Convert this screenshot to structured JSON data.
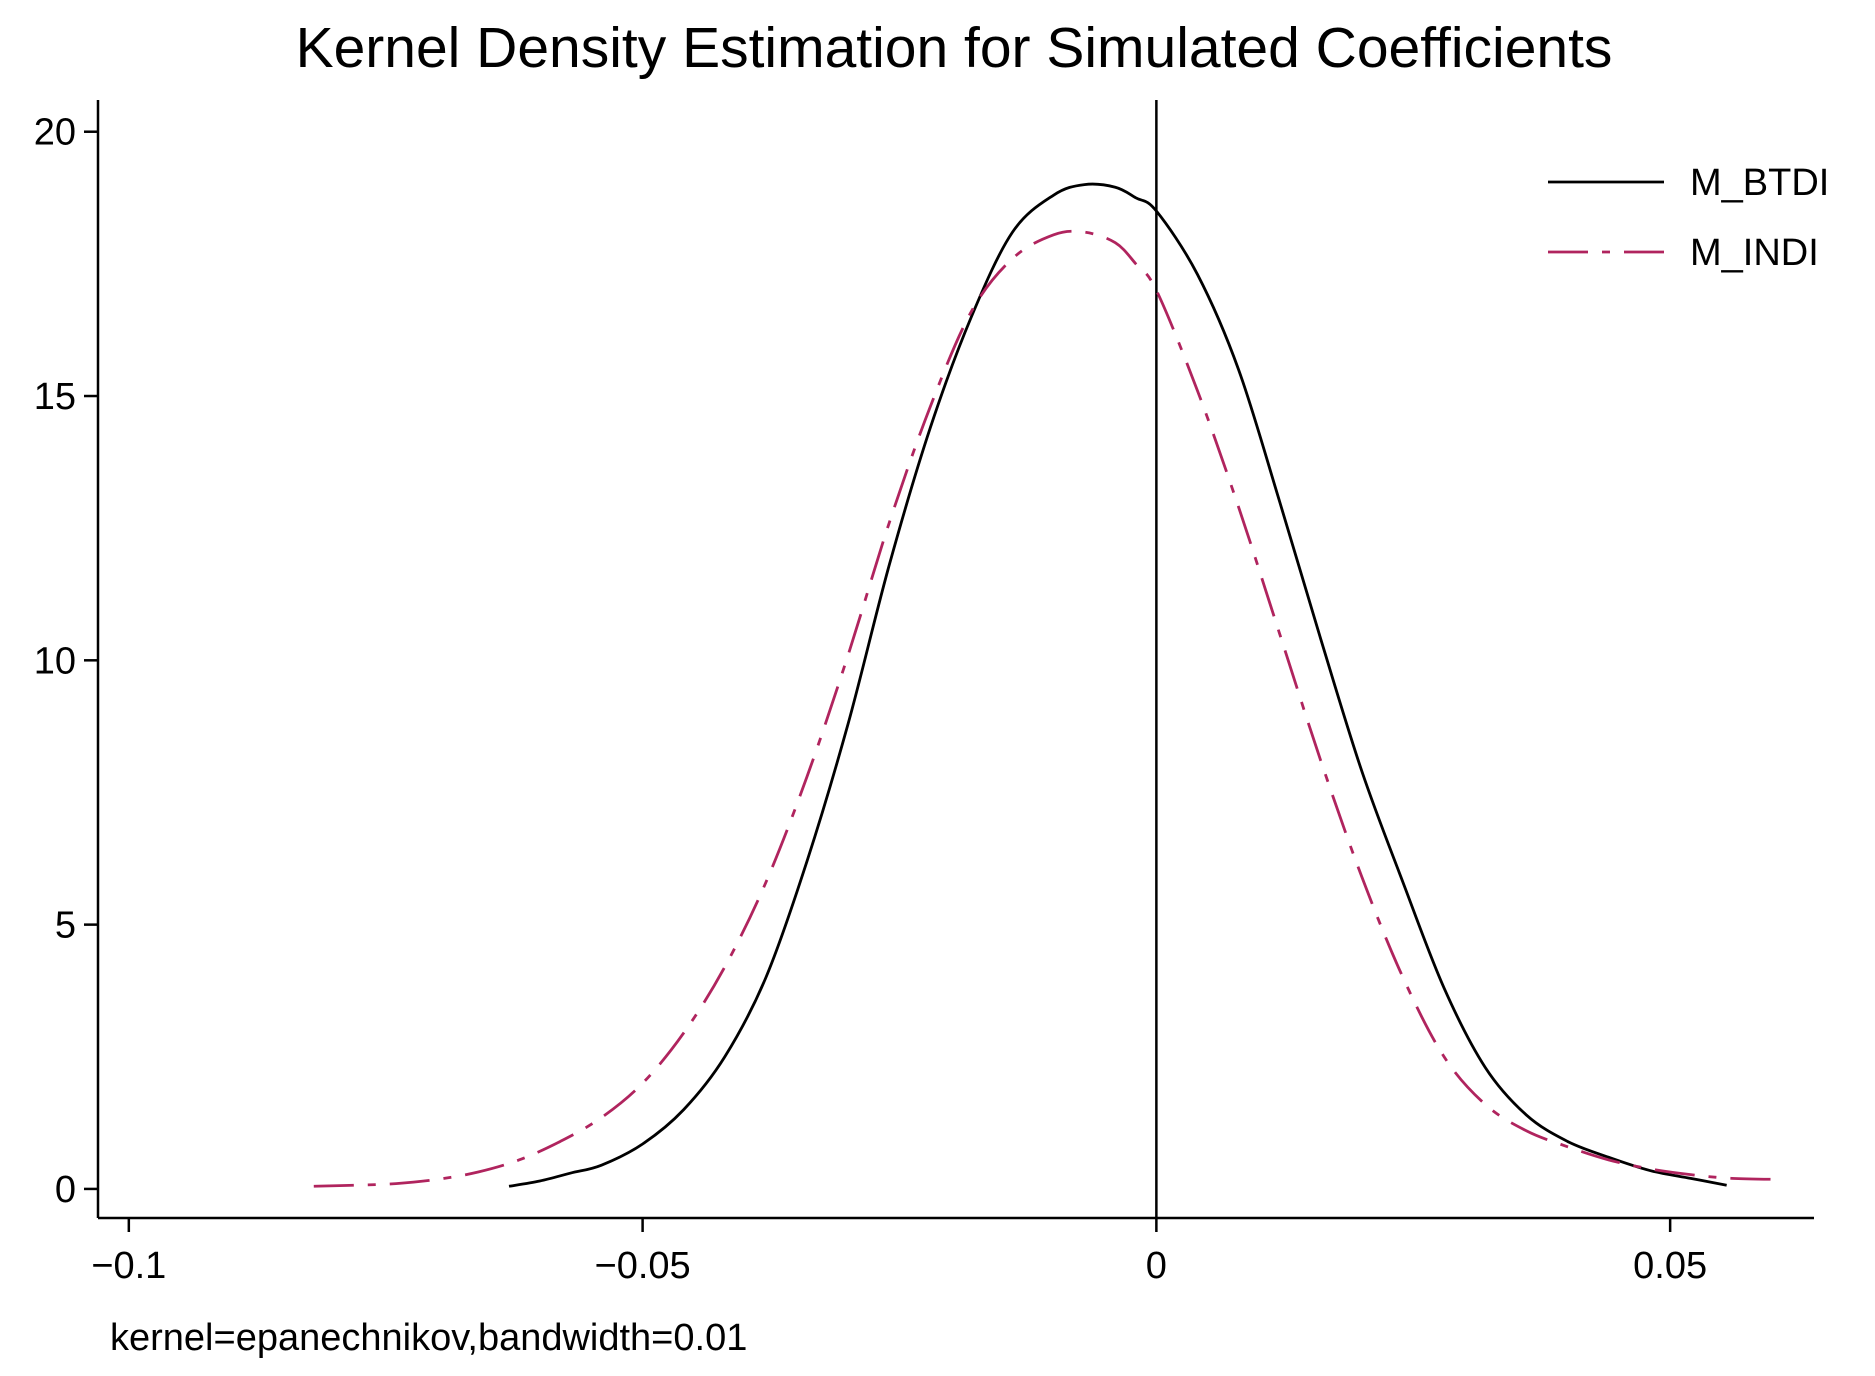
{
  "colors": {
    "background": "#ffffff",
    "axis": "#000000",
    "series_btdi": "#000000",
    "series_indi": "#b0245e"
  },
  "chart_data": {
    "type": "line",
    "title": "Kernel Density Estimation for Simulated Coefficients",
    "xlabel": "",
    "ylabel": "",
    "note": "kernel=epanechnikov,bandwidth=0.01",
    "xlim": [
      -0.103,
      0.064
    ],
    "ylim": [
      -0.55,
      20.6
    ],
    "xticks": [
      -0.1,
      -0.05,
      0,
      0.05
    ],
    "xtick_labels": [
      "−0.1",
      "−0.05",
      "0",
      "0.05"
    ],
    "yticks": [
      0,
      5,
      10,
      15,
      20
    ],
    "ytick_labels": [
      "0",
      "5",
      "10",
      "15",
      "20"
    ],
    "reference_line": {
      "x": 0
    },
    "grid": false,
    "legend": {
      "position": "top-right"
    },
    "series": [
      {
        "name": "M_BTDI",
        "color": "#000000",
        "line_style": "solid",
        "x": [
          -0.063,
          -0.06,
          -0.057,
          -0.054,
          -0.05,
          -0.046,
          -0.042,
          -0.038,
          -0.034,
          -0.03,
          -0.026,
          -0.022,
          -0.018,
          -0.014,
          -0.01,
          -0.007,
          -0.004,
          -0.002,
          0,
          0.004,
          0.008,
          0.012,
          0.016,
          0.02,
          0.024,
          0.028,
          0.032,
          0.036,
          0.04,
          0.044,
          0.048,
          0.052,
          0.0555
        ],
        "values": [
          0.05,
          0.15,
          0.3,
          0.45,
          0.85,
          1.5,
          2.5,
          4.0,
          6.2,
          8.8,
          11.8,
          14.4,
          16.5,
          18.1,
          18.8,
          19.0,
          18.95,
          18.75,
          18.5,
          17.3,
          15.5,
          13.0,
          10.4,
          7.9,
          5.8,
          3.8,
          2.3,
          1.4,
          0.9,
          0.6,
          0.35,
          0.2,
          0.07
        ]
      },
      {
        "name": "M_INDI",
        "color": "#b0245e",
        "line_style": "dash-dot",
        "x": [
          -0.082,
          -0.078,
          -0.074,
          -0.07,
          -0.066,
          -0.062,
          -0.058,
          -0.054,
          -0.05,
          -0.046,
          -0.042,
          -0.038,
          -0.034,
          -0.03,
          -0.026,
          -0.022,
          -0.018,
          -0.014,
          -0.01,
          -0.007,
          -0.004,
          -0.002,
          0,
          0.004,
          0.008,
          0.012,
          0.016,
          0.02,
          0.024,
          0.028,
          0.032,
          0.036,
          0.04,
          0.044,
          0.048,
          0.052,
          0.056,
          0.061
        ],
        "values": [
          0.05,
          0.07,
          0.1,
          0.18,
          0.32,
          0.55,
          0.9,
          1.35,
          2.0,
          2.95,
          4.2,
          5.8,
          7.8,
          10.1,
          12.6,
          14.8,
          16.6,
          17.6,
          18.05,
          18.1,
          17.9,
          17.5,
          17.0,
          15.1,
          12.9,
          10.5,
          8.1,
          5.9,
          4.0,
          2.5,
          1.6,
          1.1,
          0.8,
          0.55,
          0.38,
          0.27,
          0.2,
          0.18
        ]
      }
    ]
  }
}
